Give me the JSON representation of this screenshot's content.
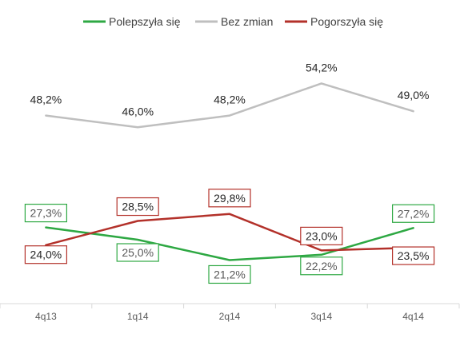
{
  "chart_data": {
    "type": "line",
    "title": "",
    "xlabel": "",
    "ylabel": "",
    "categories": [
      "4q13",
      "1q14",
      "2q14",
      "3q14",
      "4q14"
    ],
    "ylim": [
      0,
      60
    ],
    "grid": false,
    "legend_position": "top",
    "series": [
      {
        "name": "Polepszyła się",
        "color": "#2ea843",
        "values": [
          27.3,
          25.0,
          21.2,
          22.2,
          27.2
        ],
        "labels": [
          "27,3%",
          "25,0%",
          "21,2%",
          "22,2%",
          "27,2%"
        ],
        "label_style": "boxed"
      },
      {
        "name": "Bez zmian",
        "color": "#bfbfbf",
        "values": [
          48.2,
          46.0,
          48.2,
          54.2,
          49.0
        ],
        "labels": [
          "48,2%",
          "46,0%",
          "48,2%",
          "54,2%",
          "49,0%"
        ],
        "label_style": "plain"
      },
      {
        "name": "Pogorszyła się",
        "color": "#b3312a",
        "values": [
          24.0,
          28.5,
          29.8,
          23.0,
          23.5
        ],
        "labels": [
          "24,0%",
          "28,5%",
          "29,8%",
          "23,0%",
          "23,5%"
        ],
        "label_style": "boxed"
      }
    ]
  }
}
